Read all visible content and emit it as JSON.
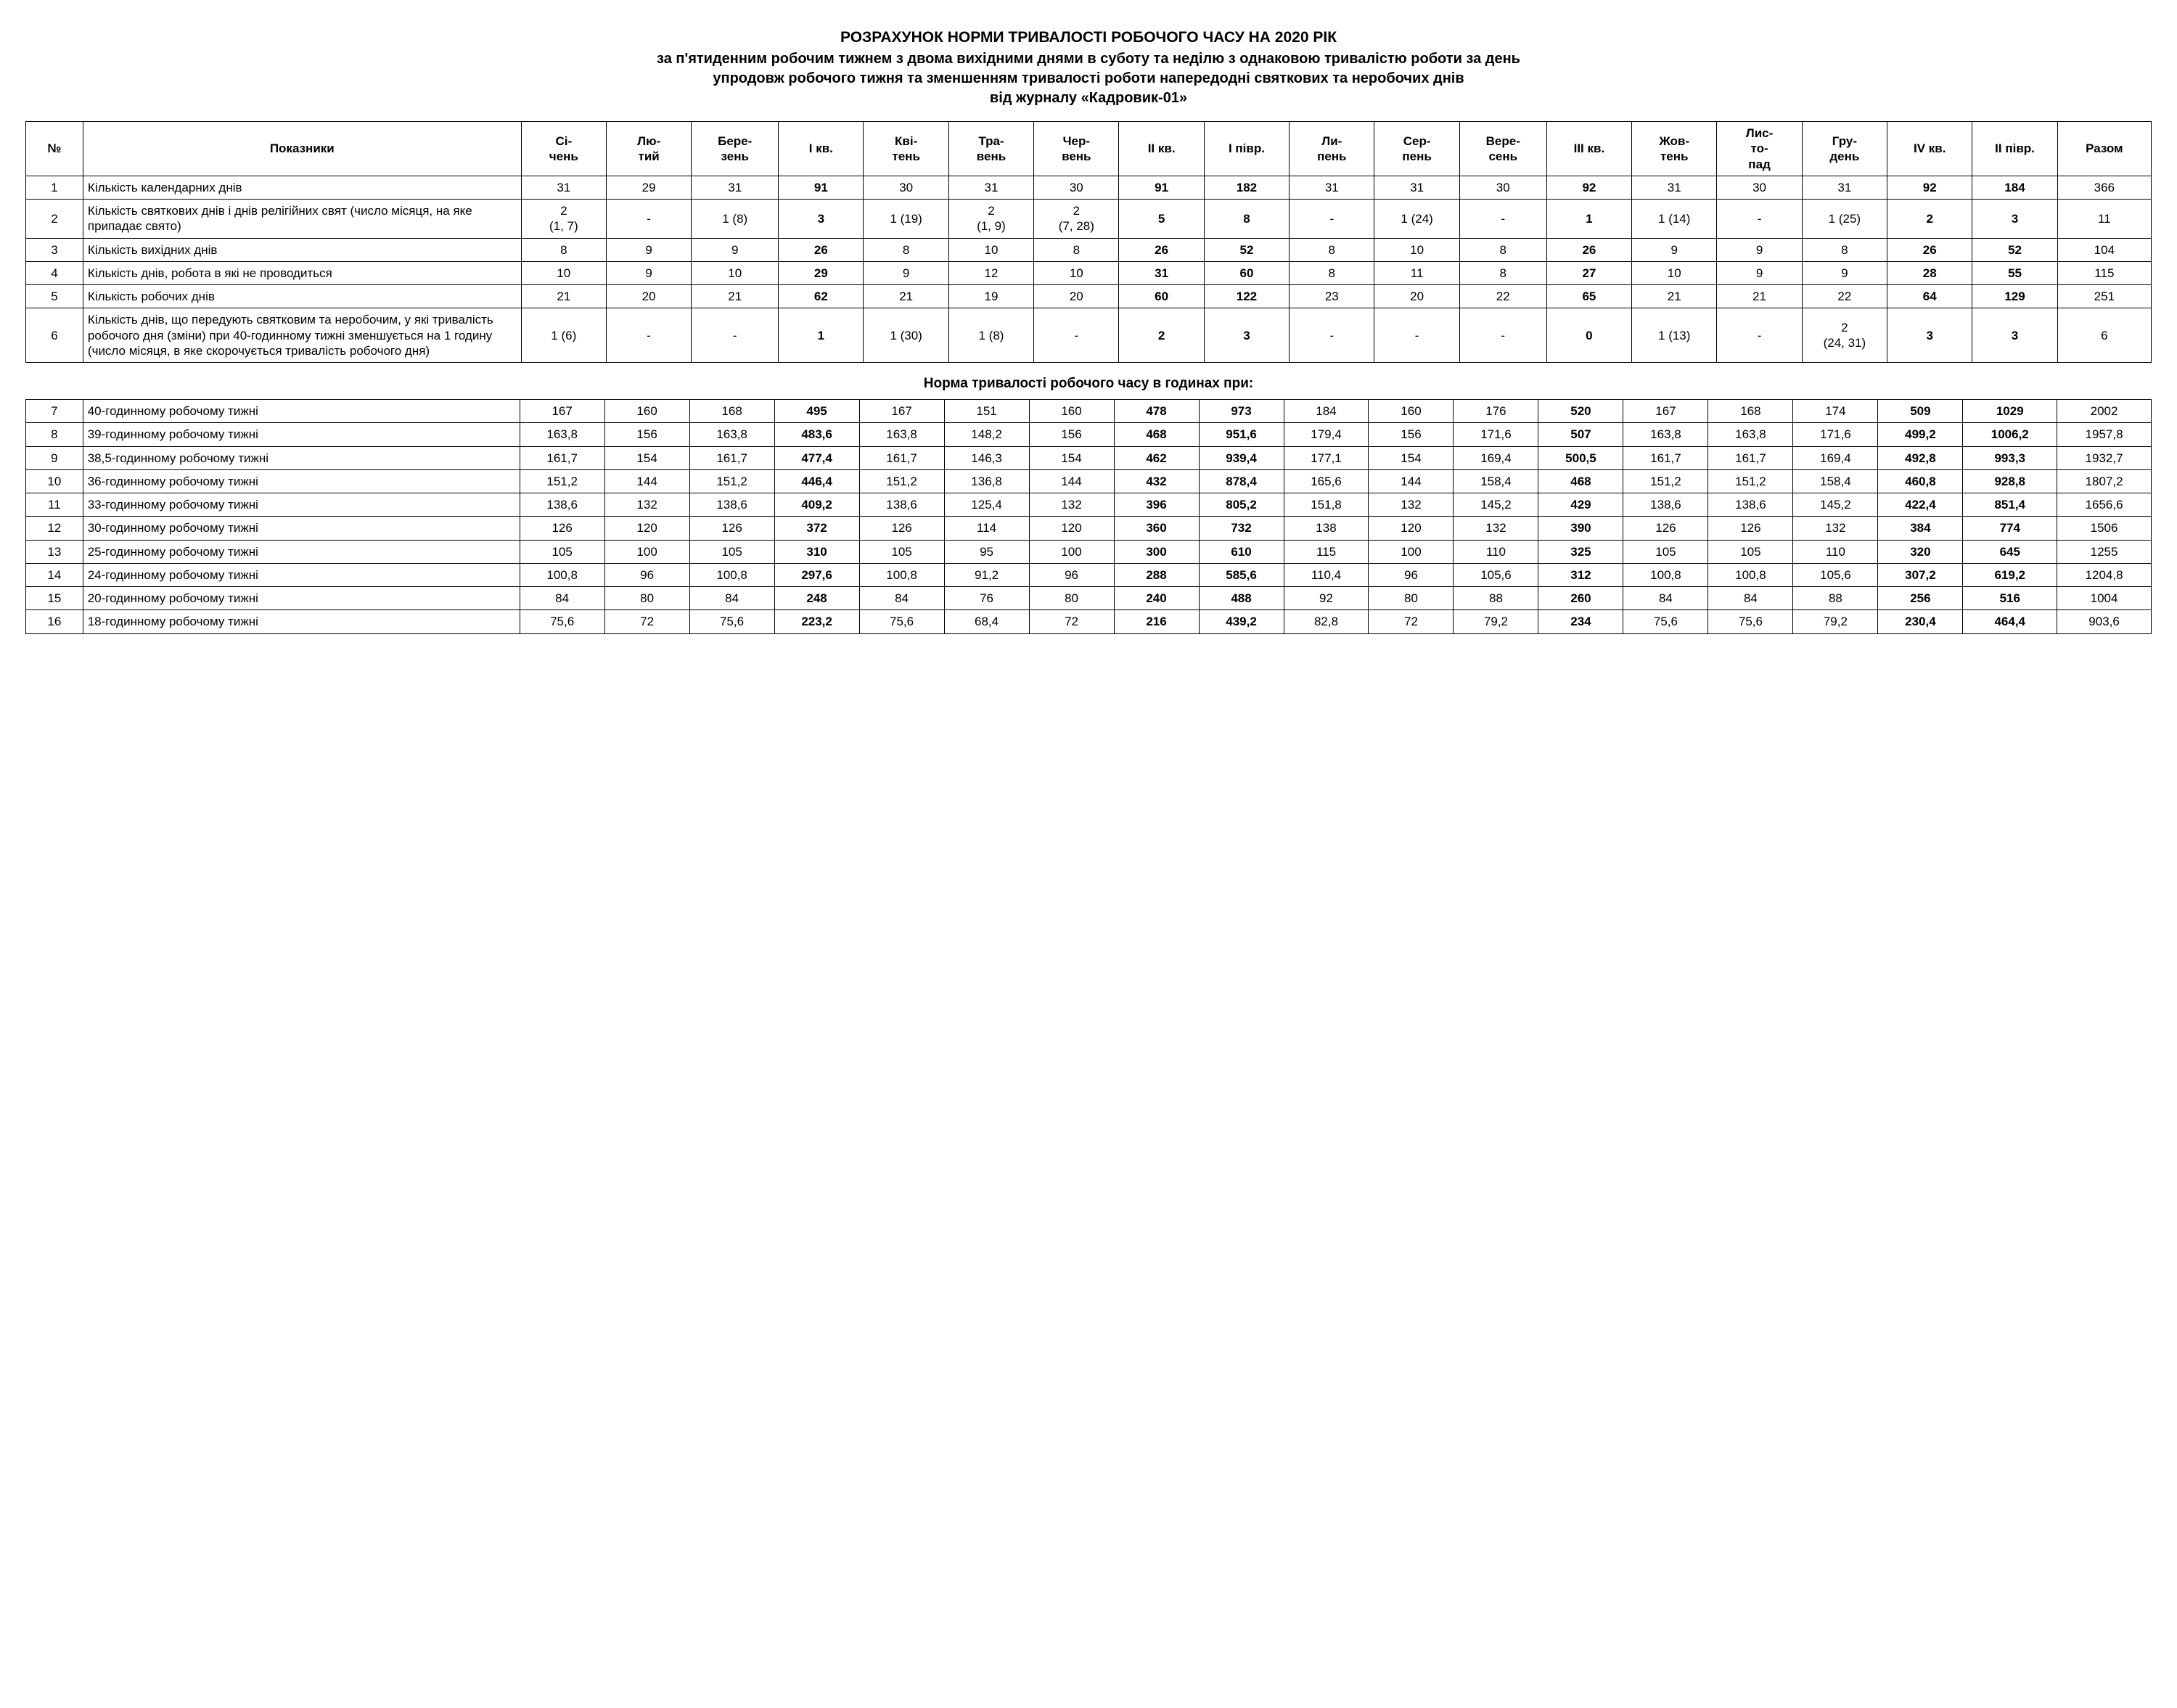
{
  "title": {
    "main": "РОЗРАХУНОК НОРМИ ТРИВАЛОСТІ РОБОЧОГО ЧАСУ НА 2020 РІК",
    "sub1": "за п'ятиденним робочим тижнем з двома вихідними днями в суботу та неділю з однаковою тривалістю роботи за день",
    "sub2": "упродовж робочого тижня та зменшенням тривалості роботи напередодні святкових та неробочих днів",
    "sub3": "від журналу «Кадровик-01»"
  },
  "headers": {
    "num": "№",
    "indicator": "Показники",
    "cols": [
      "Сі-чень",
      "Лю-тий",
      "Бере-зень",
      "І кв.",
      "Кві-тень",
      "Тра-вень",
      "Чер-вень",
      "ІІ кв.",
      "І півр.",
      "Ли-пень",
      "Сер-пень",
      "Вере-сень",
      "ІІІ кв.",
      "Жов-тень",
      "Лис-то-пад",
      "Гру-день",
      "IV кв.",
      "ІІ півр.",
      "Разом"
    ],
    "bold_idx": [
      3,
      7,
      8,
      12,
      16,
      17
    ]
  },
  "rows_top": [
    {
      "n": "1",
      "label": "Кількість календарних днів",
      "cells": [
        "31",
        "29",
        "31",
        "91",
        "30",
        "31",
        "30",
        "91",
        "182",
        "31",
        "31",
        "30",
        "92",
        "31",
        "30",
        "31",
        "92",
        "184",
        "366"
      ]
    },
    {
      "n": "2",
      "label": "Кількість святкових днів і днів релігійних свят (число місяця, на яке припадає свято)",
      "cells": [
        "2\n(1, 7)",
        "-",
        "1 (8)",
        "3",
        "1 (19)",
        "2\n(1, 9)",
        "2\n(7, 28)",
        "5",
        "8",
        "-",
        "1 (24)",
        "-",
        "1",
        "1 (14)",
        "-",
        "1 (25)",
        "2",
        "3",
        "11"
      ]
    },
    {
      "n": "3",
      "label": "Кількість вихідних днів",
      "cells": [
        "8",
        "9",
        "9",
        "26",
        "8",
        "10",
        "8",
        "26",
        "52",
        "8",
        "10",
        "8",
        "26",
        "9",
        "9",
        "8",
        "26",
        "52",
        "104"
      ]
    },
    {
      "n": "4",
      "label": "Кількість днів, робота в які не проводиться",
      "cells": [
        "10",
        "9",
        "10",
        "29",
        "9",
        "12",
        "10",
        "31",
        "60",
        "8",
        "11",
        "8",
        "27",
        "10",
        "9",
        "9",
        "28",
        "55",
        "115"
      ]
    },
    {
      "n": "5",
      "label": "Кількість робочих днів",
      "cells": [
        "21",
        "20",
        "21",
        "62",
        "21",
        "19",
        "20",
        "60",
        "122",
        "23",
        "20",
        "22",
        "65",
        "21",
        "21",
        "22",
        "64",
        "129",
        "251"
      ]
    },
    {
      "n": "6",
      "label": "Кількість днів, що передують святковим та неробочим, у які тривалість робочого дня (зміни) при 40-годинному тижні зменшується на 1 годину (число місяця, в яке скорочується тривалість робочого дня)",
      "cells": [
        "1 (6)",
        "-",
        "-",
        "1",
        "1 (30)",
        "1 (8)",
        "-",
        "2",
        "3",
        "-",
        "-",
        "-",
        "0",
        "1 (13)",
        "-",
        "2\n(24, 31)",
        "3",
        "3",
        "6"
      ]
    }
  ],
  "subheading": "Норма тривалості робочого часу в годинах при:",
  "rows_bottom": [
    {
      "n": "7",
      "label": "40-годинному робочому тижні",
      "cells": [
        "167",
        "160",
        "168",
        "495",
        "167",
        "151",
        "160",
        "478",
        "973",
        "184",
        "160",
        "176",
        "520",
        "167",
        "168",
        "174",
        "509",
        "1029",
        "2002"
      ]
    },
    {
      "n": "8",
      "label": "39-годинному робочому тижні",
      "cells": [
        "163,8",
        "156",
        "163,8",
        "483,6",
        "163,8",
        "148,2",
        "156",
        "468",
        "951,6",
        "179,4",
        "156",
        "171,6",
        "507",
        "163,8",
        "163,8",
        "171,6",
        "499,2",
        "1006,2",
        "1957,8"
      ]
    },
    {
      "n": "9",
      "label": "38,5-годинному робочому тижні",
      "cells": [
        "161,7",
        "154",
        "161,7",
        "477,4",
        "161,7",
        "146,3",
        "154",
        "462",
        "939,4",
        "177,1",
        "154",
        "169,4",
        "500,5",
        "161,7",
        "161,7",
        "169,4",
        "492,8",
        "993,3",
        "1932,7"
      ]
    },
    {
      "n": "10",
      "label": "36-годинному робочому тижні",
      "cells": [
        "151,2",
        "144",
        "151,2",
        "446,4",
        "151,2",
        "136,8",
        "144",
        "432",
        "878,4",
        "165,6",
        "144",
        "158,4",
        "468",
        "151,2",
        "151,2",
        "158,4",
        "460,8",
        "928,8",
        "1807,2"
      ]
    },
    {
      "n": "11",
      "label": "33-годинному робочому тижні",
      "cells": [
        "138,6",
        "132",
        "138,6",
        "409,2",
        "138,6",
        "125,4",
        "132",
        "396",
        "805,2",
        "151,8",
        "132",
        "145,2",
        "429",
        "138,6",
        "138,6",
        "145,2",
        "422,4",
        "851,4",
        "1656,6"
      ]
    },
    {
      "n": "12",
      "label": "30-годинному робочому тижні",
      "cells": [
        "126",
        "120",
        "126",
        "372",
        "126",
        "114",
        "120",
        "360",
        "732",
        "138",
        "120",
        "132",
        "390",
        "126",
        "126",
        "132",
        "384",
        "774",
        "1506"
      ]
    },
    {
      "n": "13",
      "label": "25-годинному робочому тижні",
      "cells": [
        "105",
        "100",
        "105",
        "310",
        "105",
        "95",
        "100",
        "300",
        "610",
        "115",
        "100",
        "110",
        "325",
        "105",
        "105",
        "110",
        "320",
        "645",
        "1255"
      ]
    },
    {
      "n": "14",
      "label": "24-годинному робочому тижні",
      "cells": [
        "100,8",
        "96",
        "100,8",
        "297,6",
        "100,8",
        "91,2",
        "96",
        "288",
        "585,6",
        "110,4",
        "96",
        "105,6",
        "312",
        "100,8",
        "100,8",
        "105,6",
        "307,2",
        "619,2",
        "1204,8"
      ]
    },
    {
      "n": "15",
      "label": "20-годинному робочому тижні",
      "cells": [
        "84",
        "80",
        "84",
        "248",
        "84",
        "76",
        "80",
        "240",
        "488",
        "92",
        "80",
        "88",
        "260",
        "84",
        "84",
        "88",
        "256",
        "516",
        "1004"
      ]
    },
    {
      "n": "16",
      "label": "18-годинному робочому тижні",
      "cells": [
        "75,6",
        "72",
        "75,6",
        "223,2",
        "75,6",
        "68,4",
        "72",
        "216",
        "439,2",
        "82,8",
        "72",
        "79,2",
        "234",
        "75,6",
        "75,6",
        "79,2",
        "230,4",
        "464,4",
        "903,6"
      ]
    }
  ]
}
